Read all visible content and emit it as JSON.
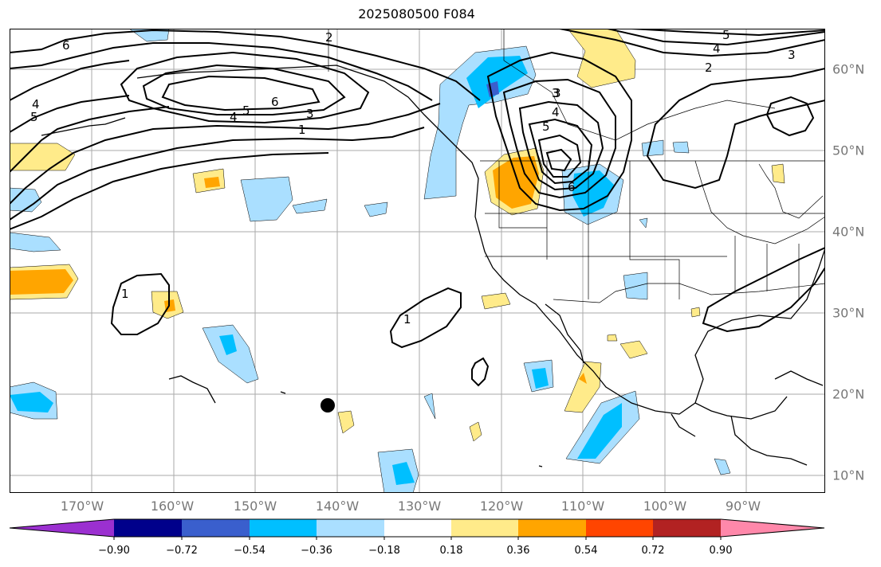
{
  "title": "2025080500 F084",
  "lon_labels": [
    "170°W",
    "160°W",
    "150°W",
    "140°W",
    "130°W",
    "120°W",
    "110°W",
    "100°W",
    "90°W"
  ],
  "lat_labels": [
    "60°N",
    "50°N",
    "40°N",
    "30°N",
    "20°N",
    "10°N"
  ],
  "colorbar": {
    "ticks": [
      "−0.90",
      "−0.72",
      "−0.54",
      "−0.36",
      "−0.18",
      "0.18",
      "0.36",
      "0.54",
      "0.72",
      "0.90"
    ],
    "colors": [
      "#9b30d0",
      "#00008b",
      "#3a5fcd",
      "#00bfff",
      "#aadfff",
      "#ffffff",
      "#ffeb8a",
      "#ffa500",
      "#ff4500",
      "#b22222",
      "#ff88aa"
    ]
  },
  "contour_labels": [
    "6",
    "4",
    "5",
    "5",
    "6",
    "3",
    "1",
    "4",
    "3",
    "2",
    "5",
    "4",
    "3",
    "2",
    "3",
    "4",
    "5",
    "6",
    "1",
    "1"
  ]
}
